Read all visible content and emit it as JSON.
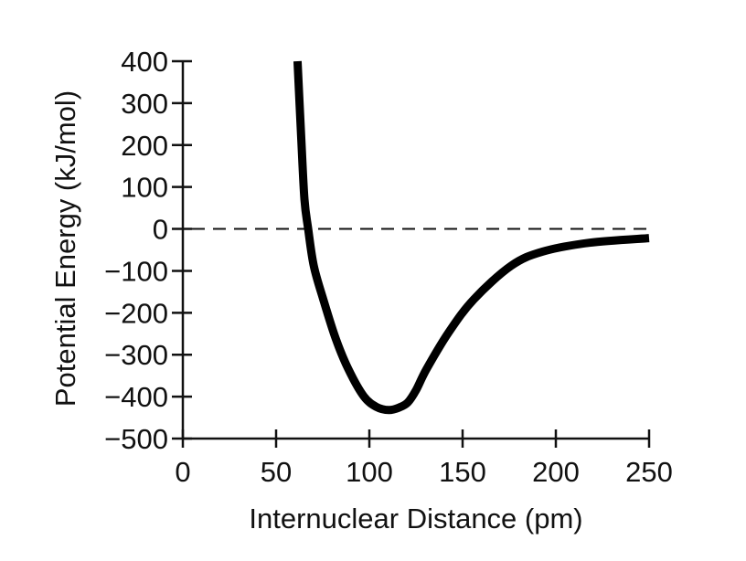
{
  "chart_data": {
    "type": "line",
    "title": "",
    "xlabel": "Internuclear Distance (pm)",
    "ylabel": "Potential Energy (kJ/mol)",
    "xlim": [
      0,
      250
    ],
    "ylim": [
      -500,
      400
    ],
    "xticks": [
      0,
      50,
      100,
      150,
      200,
      250
    ],
    "yticks": [
      400,
      300,
      200,
      100,
      0,
      -100,
      -200,
      -300,
      -400,
      -500
    ],
    "xtick_labels": [
      "0",
      "50",
      "100",
      "150",
      "200",
      "250"
    ],
    "ytick_labels": [
      "400",
      "300",
      "200",
      "100",
      "0",
      "−100",
      "−200",
      "−300",
      "−400",
      "−500"
    ],
    "grid": false,
    "reference_line": {
      "y": 0,
      "style": "dashed"
    },
    "series": [
      {
        "name": "potential energy curve",
        "color": "#000000",
        "x": [
          61.5,
          63.5,
          65.2,
          67.2,
          70.2,
          75.3,
          82,
          88.7,
          97,
          104,
          110.5,
          116,
          120.6,
          125,
          130.7,
          142.5,
          156,
          176,
          193,
          218,
          250
        ],
        "y": [
          400,
          215,
          71,
          0,
          -88,
          -168,
          -262,
          -334,
          -399,
          -425,
          -432,
          -426,
          -414,
          -385,
          -334,
          -247,
          -168,
          -88,
          -54,
          -33,
          -22
        ]
      }
    ]
  }
}
